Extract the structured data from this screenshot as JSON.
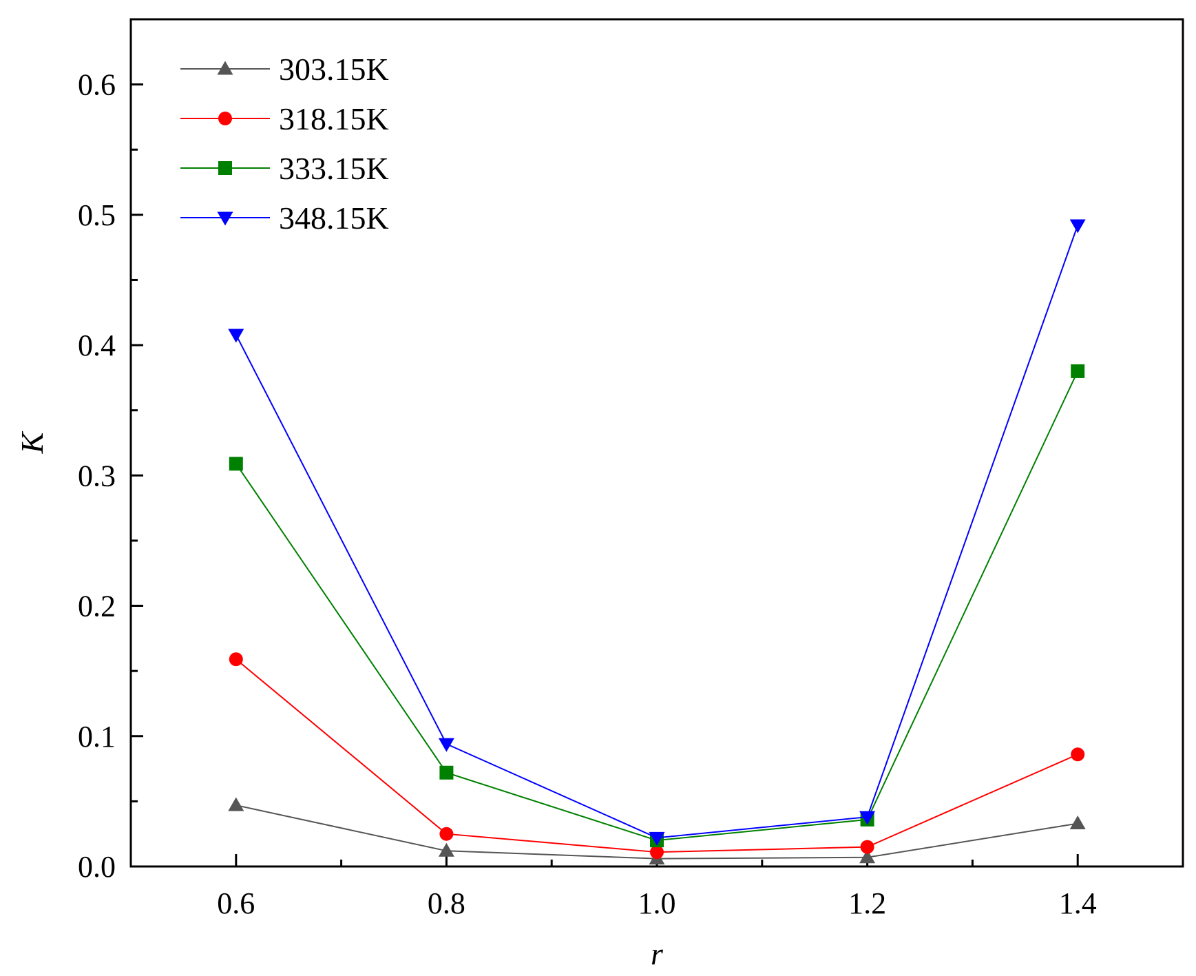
{
  "chart_data": {
    "type": "line",
    "title": "",
    "xlabel": "r",
    "ylabel": "K",
    "xlim": [
      0.5,
      1.5
    ],
    "ylim": [
      0.0,
      0.65
    ],
    "x_ticks": [
      0.6,
      0.8,
      1.0,
      1.2,
      1.4
    ],
    "x_tick_labels": [
      "0.6",
      "0.8",
      "1.0",
      "1.2",
      "1.4"
    ],
    "y_ticks": [
      0.0,
      0.1,
      0.2,
      0.3,
      0.4,
      0.5,
      0.6
    ],
    "y_tick_labels": [
      "0.0",
      "0.1",
      "0.2",
      "0.3",
      "0.4",
      "0.5",
      "0.6"
    ],
    "grid": false,
    "legend_position": "top-left",
    "x": [
      0.6,
      0.8,
      1.0,
      1.2,
      1.4
    ],
    "series": [
      {
        "name": "303.15K",
        "values": [
          0.047,
          0.012,
          0.006,
          0.007,
          0.033
        ],
        "color": "#555555",
        "marker": "triangle-up"
      },
      {
        "name": "318.15K",
        "values": [
          0.159,
          0.025,
          0.011,
          0.015,
          0.086
        ],
        "color": "#ff0000",
        "marker": "circle"
      },
      {
        "name": "333.15K",
        "values": [
          0.309,
          0.072,
          0.02,
          0.036,
          0.38
        ],
        "color": "#008000",
        "marker": "square"
      },
      {
        "name": "348.15K",
        "values": [
          0.408,
          0.094,
          0.022,
          0.038,
          0.492
        ],
        "color": "#0000ff",
        "marker": "triangle-down"
      }
    ]
  }
}
